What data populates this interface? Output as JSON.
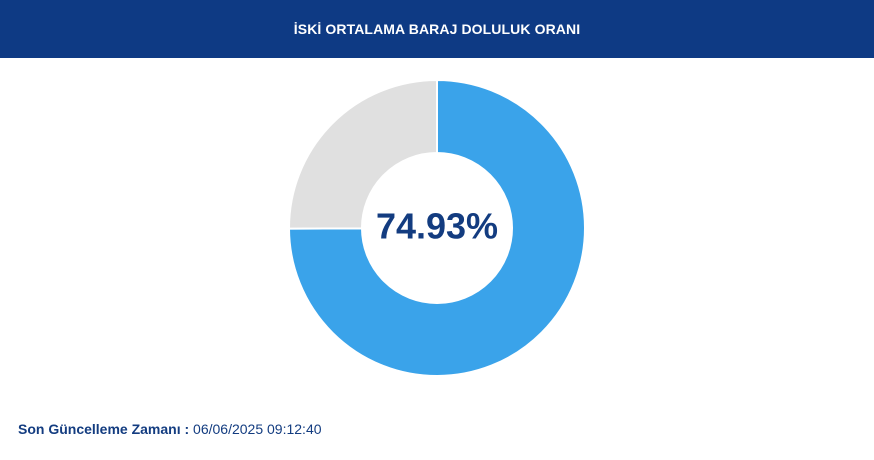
{
  "header": {
    "title": "İSKİ ORTALAMA BARAJ DOLULUK ORANI"
  },
  "chart_data": {
    "type": "pie",
    "variant": "donut",
    "title": "İSKİ ORTALAMA BARAJ DOLULUK ORANI",
    "center_label": "74.93%",
    "slices": [
      {
        "value": 74.93,
        "color": "#3aa3ea"
      },
      {
        "value": 25.07,
        "color": "#e0e0e0"
      }
    ]
  },
  "footer": {
    "label": "Son Güncelleme Zamanı",
    "separator": " :",
    "value": " 06/06/2025 09:12:40"
  },
  "colors": {
    "header_bg": "#0e3a84",
    "text_primary": "#133c80",
    "filled": "#3aa3ea",
    "empty": "#e0e0e0"
  }
}
